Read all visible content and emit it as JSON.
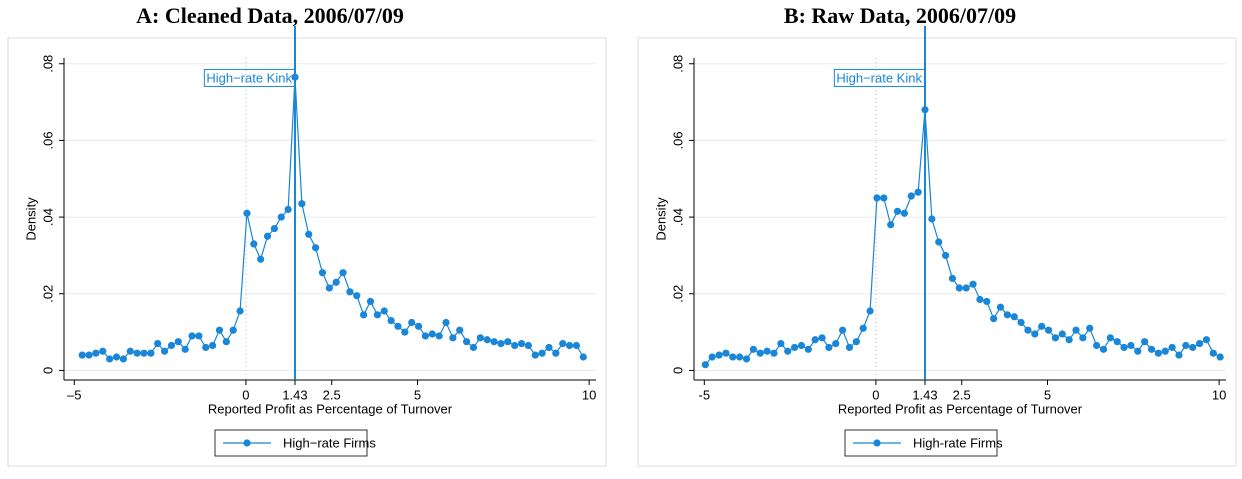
{
  "chart_data": [
    {
      "type": "line",
      "title": "A: Cleaned Data, 2006/07/09",
      "x_label": "Reported Profit as Percentage of Turnover",
      "y_label": "Density",
      "annotation": "High−rate Kink",
      "vline": 1.43,
      "xline": 0,
      "grid": true,
      "legend": "bottom",
      "xlim": [
        -5.3,
        10.2
      ],
      "ylim": [
        -0.0025,
        0.0815
      ],
      "xticks": [
        {
          "value": -5,
          "label": "–5"
        },
        0,
        1.43,
        2.5,
        5,
        10
      ],
      "yticks": [
        0,
        {
          "value": 0.02,
          "label": ".02"
        },
        {
          "value": 0.04,
          "label": ".04"
        },
        {
          "value": 0.06,
          "label": ".06"
        },
        {
          "value": 0.08,
          "label": ".08"
        }
      ],
      "x": [
        -4.77,
        -4.57,
        -4.37,
        -4.17,
        -3.97,
        -3.77,
        -3.57,
        -3.37,
        -3.17,
        -2.97,
        -2.77,
        -2.57,
        -2.37,
        -2.17,
        -1.97,
        -1.77,
        -1.57,
        -1.37,
        -1.17,
        -0.97,
        -0.77,
        -0.57,
        -0.37,
        -0.17,
        0.03,
        0.23,
        0.43,
        0.63,
        0.83,
        1.03,
        1.23,
        1.43,
        1.63,
        1.83,
        2.03,
        2.23,
        2.43,
        2.63,
        2.83,
        3.03,
        3.23,
        3.43,
        3.63,
        3.83,
        4.03,
        4.23,
        4.43,
        4.63,
        4.83,
        5.03,
        5.23,
        5.43,
        5.63,
        5.83,
        6.03,
        6.23,
        6.43,
        6.63,
        6.83,
        7.03,
        7.23,
        7.43,
        7.63,
        7.83,
        8.03,
        8.23,
        8.43,
        8.63,
        8.83,
        9.03,
        9.23,
        9.43,
        9.63,
        9.83
      ],
      "series": [
        {
          "name": "High−rate Firms",
          "color": "#1a86d8",
          "values": [
            0.004,
            0.004,
            0.0045,
            0.005,
            0.003,
            0.0035,
            0.003,
            0.005,
            0.0045,
            0.0045,
            0.0045,
            0.007,
            0.005,
            0.0065,
            0.0075,
            0.0055,
            0.009,
            0.009,
            0.006,
            0.0065,
            0.0105,
            0.0075,
            0.0105,
            0.0155,
            0.041,
            0.033,
            0.029,
            0.035,
            0.037,
            0.04,
            0.042,
            0.0765,
            0.0435,
            0.0355,
            0.032,
            0.0255,
            0.0215,
            0.023,
            0.0255,
            0.0205,
            0.0195,
            0.0145,
            0.018,
            0.0145,
            0.0155,
            0.013,
            0.0115,
            0.01,
            0.0125,
            0.0115,
            0.009,
            0.0095,
            0.009,
            0.0125,
            0.0085,
            0.0105,
            0.0075,
            0.006,
            0.0085,
            0.008,
            0.0075,
            0.007,
            0.0075,
            0.0065,
            0.007,
            0.0065,
            0.004,
            0.0045,
            0.006,
            0.0045,
            0.007,
            0.0065,
            0.0065,
            0.0035
          ]
        }
      ]
    },
    {
      "type": "line",
      "title": "B: Raw Data, 2006/07/09",
      "x_label": "Reported Profit as Percentage of Turnover",
      "y_label": "Density",
      "annotation": "High−rate Kink",
      "vline": 1.43,
      "xline": 0,
      "grid": true,
      "legend": "bottom",
      "xlim": [
        -5.3,
        10.2
      ],
      "ylim": [
        -0.0025,
        0.0815
      ],
      "xticks": [
        {
          "value": -5,
          "label": "-5"
        },
        0,
        1.43,
        2.5,
        5,
        10
      ],
      "yticks": [
        0,
        {
          "value": 0.02,
          "label": ".02"
        },
        {
          "value": 0.04,
          "label": ".04"
        },
        {
          "value": 0.06,
          "label": ".06"
        },
        {
          "value": 0.08,
          "label": ".08"
        }
      ],
      "x": [
        -4.97,
        -4.77,
        -4.57,
        -4.37,
        -4.17,
        -3.97,
        -3.77,
        -3.57,
        -3.37,
        -3.17,
        -2.97,
        -2.77,
        -2.57,
        -2.37,
        -2.17,
        -1.97,
        -1.77,
        -1.57,
        -1.37,
        -1.17,
        -0.97,
        -0.77,
        -0.57,
        -0.37,
        -0.17,
        0.03,
        0.23,
        0.43,
        0.63,
        0.83,
        1.03,
        1.23,
        1.43,
        1.63,
        1.83,
        2.03,
        2.23,
        2.43,
        2.63,
        2.83,
        3.03,
        3.23,
        3.43,
        3.63,
        3.83,
        4.03,
        4.23,
        4.43,
        4.63,
        4.83,
        5.03,
        5.23,
        5.43,
        5.63,
        5.83,
        6.03,
        6.23,
        6.43,
        6.63,
        6.83,
        7.03,
        7.23,
        7.43,
        7.63,
        7.83,
        8.03,
        8.23,
        8.43,
        8.63,
        8.83,
        9.03,
        9.23,
        9.43,
        9.63,
        9.83,
        10.03
      ],
      "series": [
        {
          "name": "High-rate Firms",
          "color": "#1a86d8",
          "values": [
            0.0015,
            0.0035,
            0.004,
            0.0045,
            0.0035,
            0.0035,
            0.003,
            0.0055,
            0.0045,
            0.005,
            0.0045,
            0.007,
            0.005,
            0.006,
            0.0065,
            0.0055,
            0.008,
            0.0085,
            0.006,
            0.007,
            0.0105,
            0.006,
            0.0075,
            0.011,
            0.0155,
            0.045,
            0.045,
            0.038,
            0.0415,
            0.041,
            0.0455,
            0.0465,
            0.068,
            0.0395,
            0.0335,
            0.03,
            0.024,
            0.0215,
            0.0215,
            0.0225,
            0.0185,
            0.018,
            0.0135,
            0.0165,
            0.0145,
            0.014,
            0.0125,
            0.0105,
            0.0095,
            0.0115,
            0.0105,
            0.0085,
            0.0095,
            0.008,
            0.0105,
            0.0085,
            0.011,
            0.0065,
            0.0055,
            0.0085,
            0.0075,
            0.006,
            0.0065,
            0.005,
            0.0075,
            0.0055,
            0.0045,
            0.005,
            0.006,
            0.004,
            0.0065,
            0.006,
            0.007,
            0.008,
            0.0045,
            0.0035
          ]
        }
      ]
    }
  ]
}
